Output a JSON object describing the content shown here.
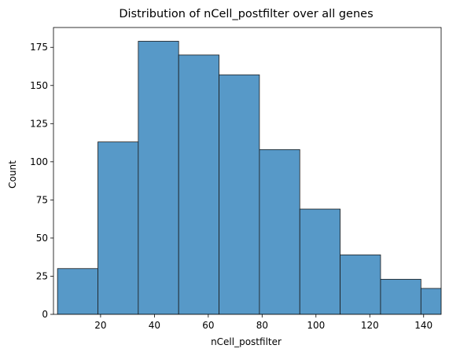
{
  "chart_data": {
    "type": "bar",
    "title": "Distribution of nCell_postfilter over all genes",
    "xlabel": "nCell_postfilter",
    "ylabel": "Count",
    "bins": [
      {
        "x0": 4,
        "x1": 19,
        "count": 30
      },
      {
        "x0": 19,
        "x1": 34,
        "count": 113
      },
      {
        "x0": 34,
        "x1": 49,
        "count": 179
      },
      {
        "x0": 49,
        "x1": 64,
        "count": 170
      },
      {
        "x0": 64,
        "x1": 79,
        "count": 157
      },
      {
        "x0": 79,
        "x1": 94,
        "count": 108
      },
      {
        "x0": 94,
        "x1": 109,
        "count": 69
      },
      {
        "x0": 109,
        "x1": 124,
        "count": 39
      },
      {
        "x0": 124,
        "x1": 139,
        "count": 23
      },
      {
        "x0": 139,
        "x1": 154,
        "count": 17
      }
    ],
    "xlim": [
      2.5,
      146.5
    ],
    "ylim": [
      0,
      188
    ],
    "xticks": [
      20,
      40,
      60,
      80,
      100,
      120,
      140
    ],
    "yticks": [
      0,
      25,
      50,
      75,
      100,
      125,
      150,
      175
    ],
    "colors": {
      "bar_fill": "#5799c8",
      "bar_edge": "#1a1a1a"
    },
    "grid": false,
    "legend": false
  }
}
